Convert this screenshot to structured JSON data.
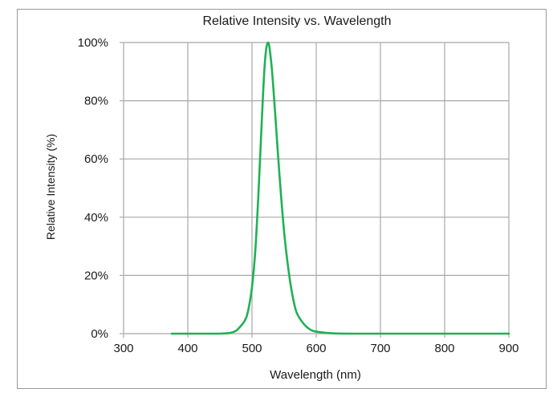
{
  "chart_data": {
    "type": "line",
    "title": "Relative Intensity vs. Wavelength",
    "xlabel": "Wavelength (nm)",
    "ylabel": "Relative Intensity (%)",
    "xlim": [
      300,
      900
    ],
    "ylim": [
      0,
      100
    ],
    "x_ticks": [
      300,
      400,
      500,
      600,
      700,
      800,
      900
    ],
    "x_tick_labels": [
      "300",
      "400",
      "500",
      "600",
      "700",
      "800",
      "900"
    ],
    "y_ticks": [
      0,
      20,
      40,
      60,
      80,
      100
    ],
    "y_tick_labels": [
      "0%",
      "20%",
      "40%",
      "60%",
      "80%",
      "100%"
    ],
    "grid": true,
    "legend": "none",
    "series": [
      {
        "color": "#1fb155",
        "x": [
          375,
          400,
          450,
          470,
          480,
          490,
          495,
          500,
          505,
          510,
          515,
          520,
          525,
          530,
          535,
          540,
          545,
          550,
          555,
          560,
          565,
          570,
          580,
          590,
          600,
          620,
          650,
          700,
          800,
          900
        ],
        "y": [
          0,
          0,
          0,
          0.5,
          2,
          5,
          9,
          16,
          28,
          48,
          72,
          93,
          100,
          93,
          79,
          63,
          48,
          35,
          25,
          17,
          11,
          7,
          3.5,
          1.5,
          0.7,
          0.2,
          0,
          0,
          0,
          0
        ]
      }
    ]
  }
}
